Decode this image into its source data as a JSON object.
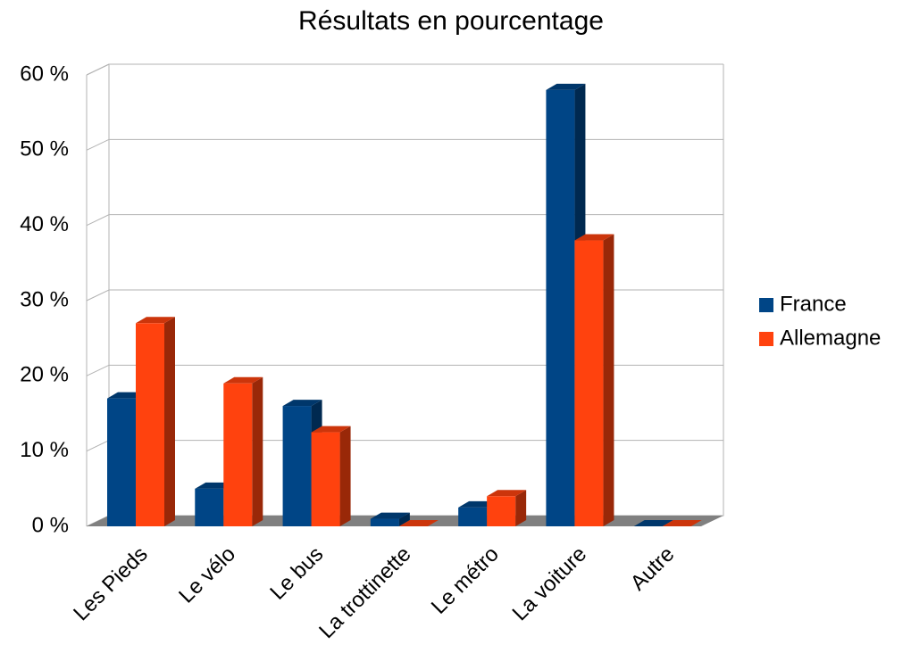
{
  "chart_data": {
    "type": "bar3d",
    "title": "Résultats en pourcentage",
    "categories": [
      "Les Pieds",
      "Le vélo",
      "Le bus",
      "La trottinette",
      "Le métro",
      "La voiture",
      "Autre"
    ],
    "series": [
      {
        "name": "France",
        "color": "#004586",
        "values": [
          17,
          5,
          16,
          1,
          2.5,
          58,
          0
        ]
      },
      {
        "name": "Allemagne",
        "color": "#ff420e",
        "values": [
          27,
          19,
          12.5,
          0,
          4,
          38,
          0
        ]
      }
    ],
    "ylim": [
      0,
      60
    ],
    "yticks": [
      {
        "value": 0,
        "label": "0 %"
      },
      {
        "value": 10,
        "label": "10 %"
      },
      {
        "value": 20,
        "label": "20 %"
      },
      {
        "value": 30,
        "label": "30 %"
      },
      {
        "value": 40,
        "label": "40 %"
      },
      {
        "value": 50,
        "label": "50 %"
      },
      {
        "value": 60,
        "label": "60 %"
      }
    ],
    "grid": true,
    "legend": "right"
  }
}
